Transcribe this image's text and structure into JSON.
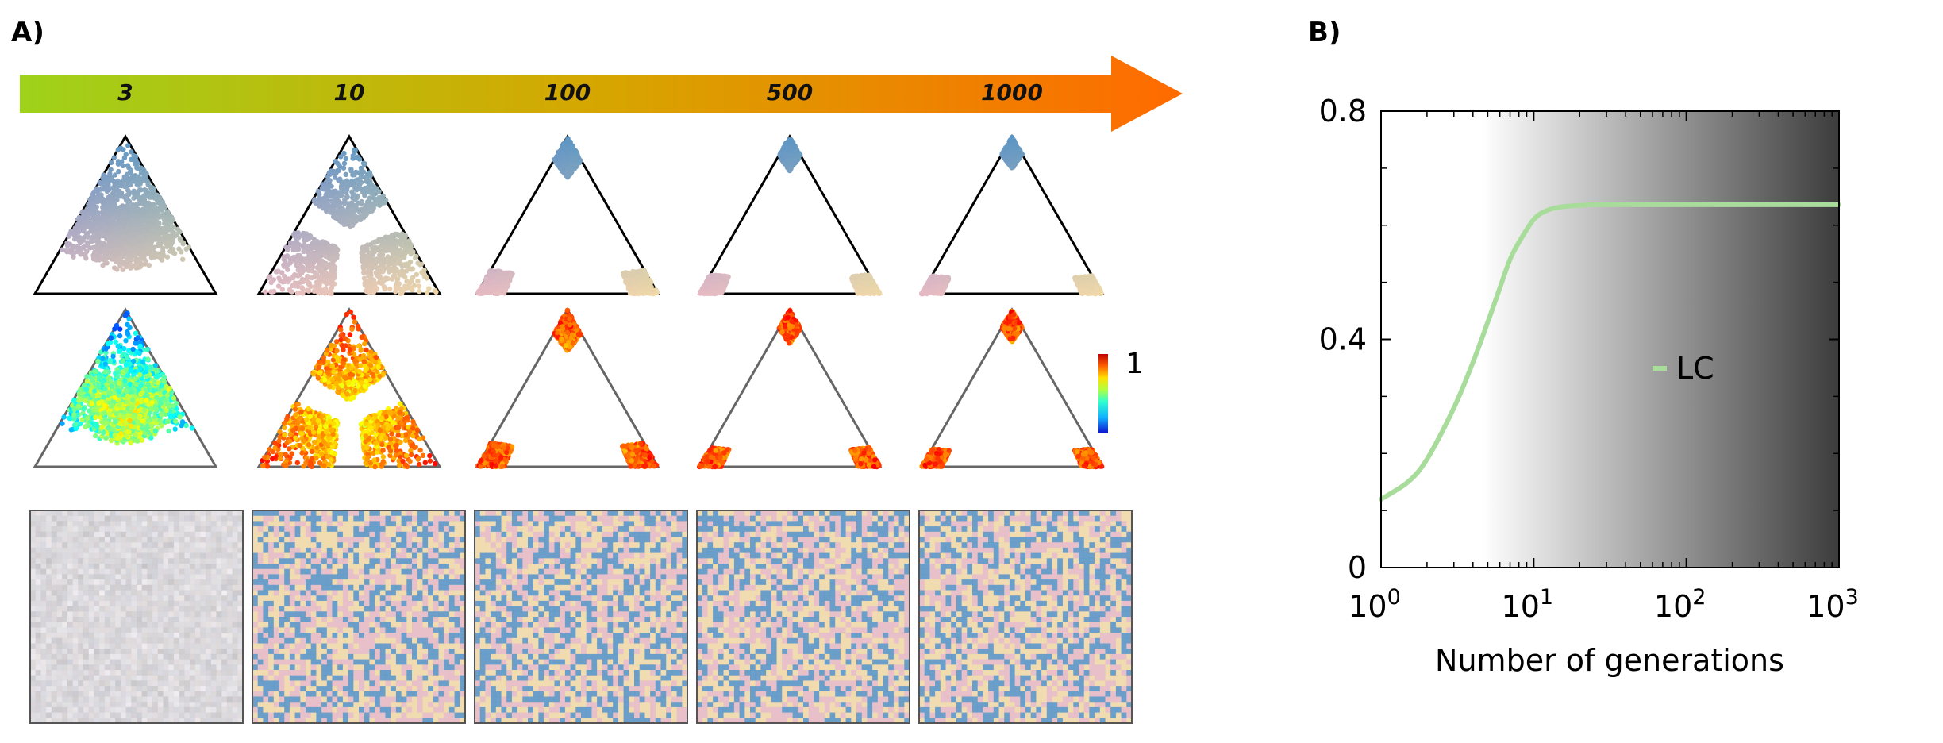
{
  "panel_a": {
    "label": "A)",
    "generations": [
      "3",
      "10",
      "100",
      "500",
      "1000"
    ],
    "arrow_colors": [
      "#9fd21a",
      "#ff6a00"
    ],
    "composition_colors": {
      "top": "#5b95c4",
      "left": "#e5b9c4",
      "right": "#efd8a8"
    },
    "colorbar_label": "1"
  },
  "panel_b": {
    "label": "B)"
  },
  "chart_data": {
    "type": "line",
    "title": "",
    "xlabel": "Number of generations",
    "ylabel": "",
    "xscale": "log",
    "xlim": [
      1,
      1000
    ],
    "ylim": [
      0,
      0.8
    ],
    "xticks": [
      {
        "base": "10",
        "exp": "0"
      },
      {
        "base": "10",
        "exp": "1"
      },
      {
        "base": "10",
        "exp": "2"
      },
      {
        "base": "10",
        "exp": "3"
      }
    ],
    "yticks": [
      "0",
      "0.4",
      "0.8"
    ],
    "background": "white-to-dark-gray gradient starting near x=5",
    "legend_position": "center-right",
    "grid": false,
    "series": [
      {
        "name": "LC",
        "color": "#a8dc9b",
        "x": [
          1,
          1.5,
          2,
          3,
          4,
          5,
          6,
          7,
          8,
          10,
          12,
          15,
          20,
          30,
          50,
          100,
          200,
          500,
          1000
        ],
        "y": [
          0.12,
          0.15,
          0.19,
          0.28,
          0.36,
          0.43,
          0.49,
          0.54,
          0.57,
          0.61,
          0.625,
          0.632,
          0.635,
          0.636,
          0.636,
          0.636,
          0.636,
          0.636,
          0.636
        ]
      }
    ]
  }
}
